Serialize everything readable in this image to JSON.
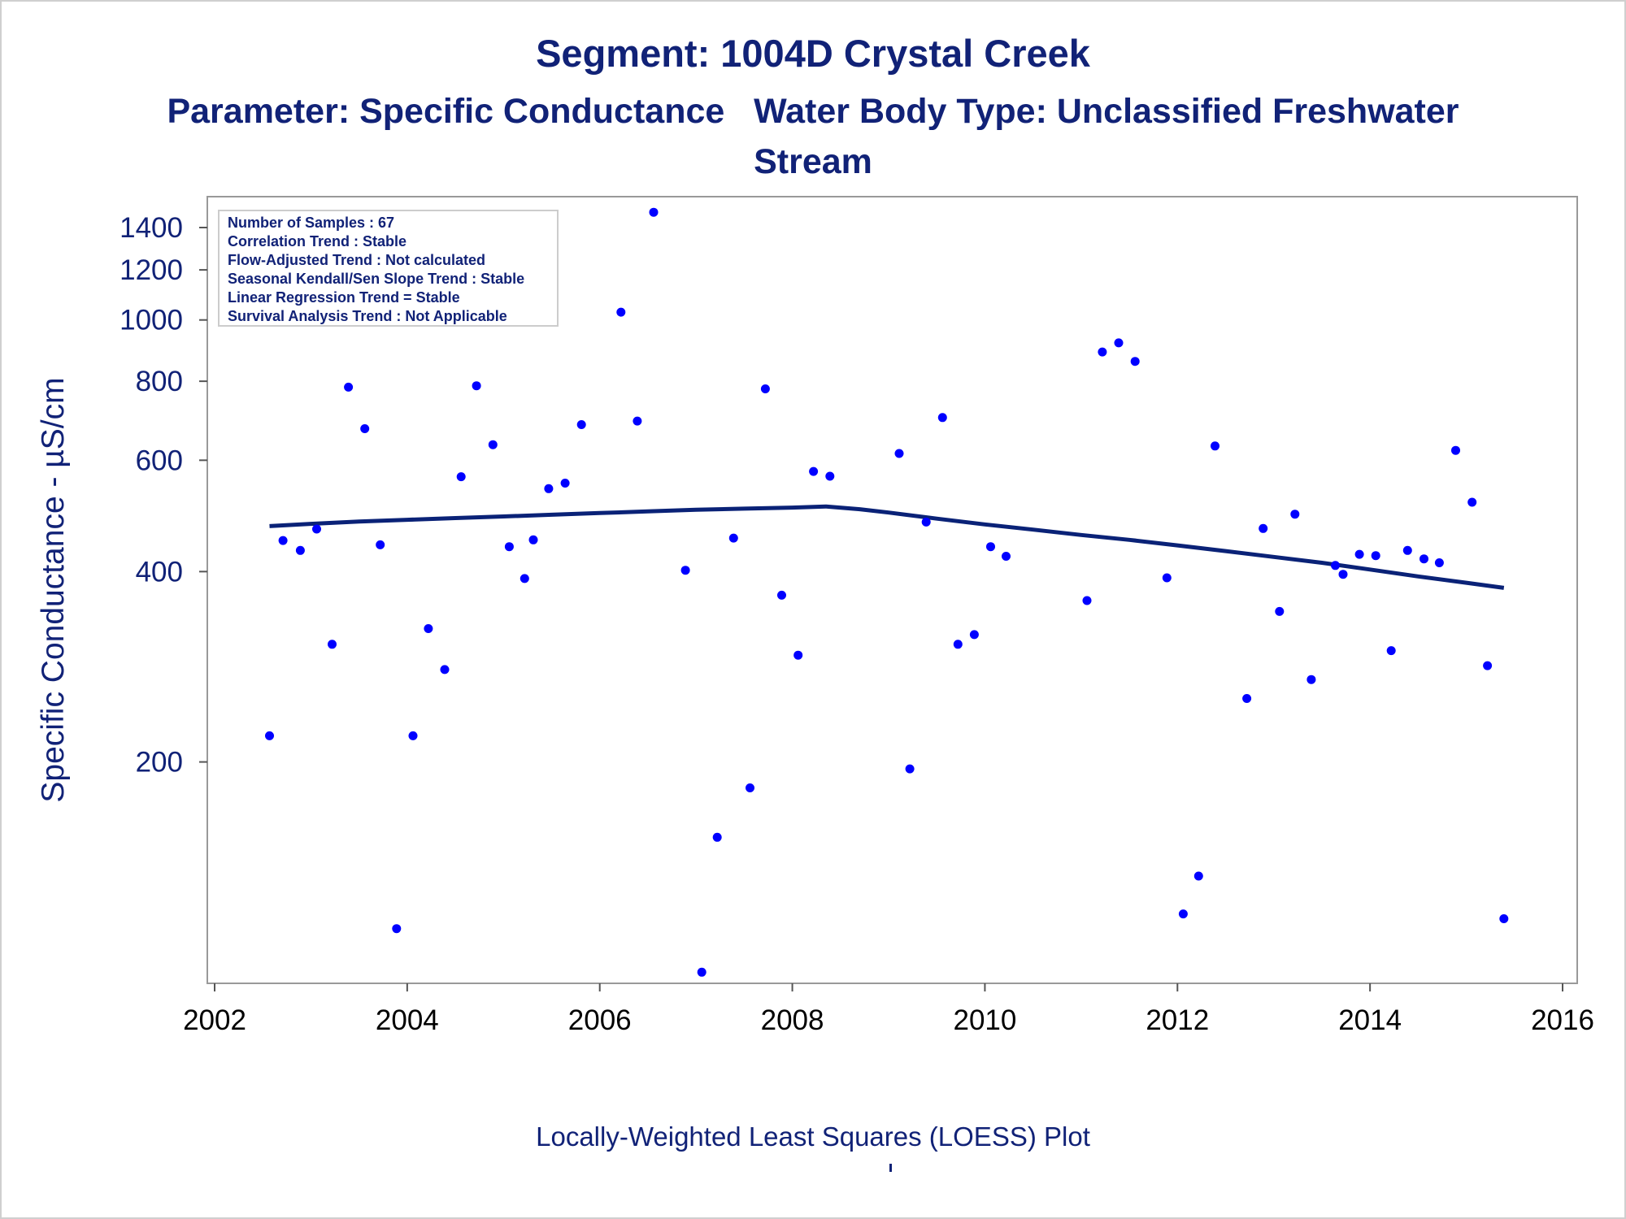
{
  "titles": {
    "title": "Segment: 1004D  Crystal Creek",
    "subtitle": "Parameter: Specific Conductance   Water Body Type: Unclassified Freshwater\nStream"
  },
  "footnote": "Locally-Weighted Least Squares (LOESS) Plot",
  "colors": {
    "text": "#112277",
    "points": "#0000ff",
    "loess": "#0a2277",
    "frame": "#999999"
  },
  "chart_data": {
    "type": "scatter",
    "xlabel": "",
    "ylabel": "Specific Conductance -  µS/cm",
    "y_scale": "log",
    "xlim": [
      2002,
      2016
    ],
    "ylim": [
      92,
      1530
    ],
    "xticks": [
      2002,
      2004,
      2006,
      2008,
      2010,
      2012,
      2014,
      2016
    ],
    "yticks": [
      200,
      400,
      600,
      800,
      1000,
      1200,
      1400
    ],
    "grid": false,
    "stats_box": {
      "position": "top-left",
      "lines": [
        "Number of Samples : 67",
        "Correlation Trend : Stable",
        "Flow-Adjusted Trend : Not calculated",
        "Seasonal Kendall/Sen Slope Trend : Stable",
        "Linear Regression Trend = Stable",
        "Survival Analysis Trend : Not Applicable"
      ]
    },
    "series": [
      {
        "kind": "points",
        "points": [
          {
            "x": 2002.57,
            "y": 220
          },
          {
            "x": 2002.71,
            "y": 448
          },
          {
            "x": 2002.89,
            "y": 432
          },
          {
            "x": 2003.06,
            "y": 467
          },
          {
            "x": 2003.22,
            "y": 307
          },
          {
            "x": 2003.39,
            "y": 783
          },
          {
            "x": 2003.56,
            "y": 673
          },
          {
            "x": 2003.72,
            "y": 441
          },
          {
            "x": 2003.89,
            "y": 109
          },
          {
            "x": 2004.06,
            "y": 220
          },
          {
            "x": 2004.22,
            "y": 325
          },
          {
            "x": 2004.39,
            "y": 280
          },
          {
            "x": 2004.56,
            "y": 565
          },
          {
            "x": 2004.72,
            "y": 787
          },
          {
            "x": 2004.89,
            "y": 635
          },
          {
            "x": 2005.06,
            "y": 438
          },
          {
            "x": 2005.22,
            "y": 390
          },
          {
            "x": 2005.31,
            "y": 449
          },
          {
            "x": 2005.47,
            "y": 541
          },
          {
            "x": 2005.64,
            "y": 552
          },
          {
            "x": 2005.81,
            "y": 683
          },
          {
            "x": 2006.22,
            "y": 1029
          },
          {
            "x": 2006.39,
            "y": 692
          },
          {
            "x": 2006.56,
            "y": 1480
          },
          {
            "x": 2006.89,
            "y": 402
          },
          {
            "x": 2007.06,
            "y": 93
          },
          {
            "x": 2007.22,
            "y": 152
          },
          {
            "x": 2007.39,
            "y": 452
          },
          {
            "x": 2007.56,
            "y": 182
          },
          {
            "x": 2007.72,
            "y": 778
          },
          {
            "x": 2007.89,
            "y": 367
          },
          {
            "x": 2008.06,
            "y": 295
          },
          {
            "x": 2008.22,
            "y": 576
          },
          {
            "x": 2008.39,
            "y": 566
          },
          {
            "x": 2009.11,
            "y": 615
          },
          {
            "x": 2009.22,
            "y": 195
          },
          {
            "x": 2009.39,
            "y": 479
          },
          {
            "x": 2009.56,
            "y": 701
          },
          {
            "x": 2009.72,
            "y": 307
          },
          {
            "x": 2009.89,
            "y": 318
          },
          {
            "x": 2010.06,
            "y": 438
          },
          {
            "x": 2010.22,
            "y": 423
          },
          {
            "x": 2011.06,
            "y": 360
          },
          {
            "x": 2011.22,
            "y": 890
          },
          {
            "x": 2011.39,
            "y": 920
          },
          {
            "x": 2011.56,
            "y": 860
          },
          {
            "x": 2011.89,
            "y": 391
          },
          {
            "x": 2012.06,
            "y": 115
          },
          {
            "x": 2012.22,
            "y": 132
          },
          {
            "x": 2012.39,
            "y": 632
          },
          {
            "x": 2012.72,
            "y": 252
          },
          {
            "x": 2012.89,
            "y": 468
          },
          {
            "x": 2013.06,
            "y": 346
          },
          {
            "x": 2013.22,
            "y": 493
          },
          {
            "x": 2013.39,
            "y": 270
          },
          {
            "x": 2013.64,
            "y": 409
          },
          {
            "x": 2013.72,
            "y": 396
          },
          {
            "x": 2013.89,
            "y": 426
          },
          {
            "x": 2014.06,
            "y": 424
          },
          {
            "x": 2014.22,
            "y": 300
          },
          {
            "x": 2014.39,
            "y": 432
          },
          {
            "x": 2014.56,
            "y": 419
          },
          {
            "x": 2014.72,
            "y": 413
          },
          {
            "x": 2014.89,
            "y": 622
          },
          {
            "x": 2015.06,
            "y": 515
          },
          {
            "x": 2015.22,
            "y": 284
          },
          {
            "x": 2015.39,
            "y": 113
          }
        ]
      },
      {
        "kind": "loess-line",
        "points": [
          {
            "x": 2002.57,
            "y": 472
          },
          {
            "x": 2003.0,
            "y": 476
          },
          {
            "x": 2003.5,
            "y": 480
          },
          {
            "x": 2004.0,
            "y": 483
          },
          {
            "x": 2004.5,
            "y": 486
          },
          {
            "x": 2005.0,
            "y": 489
          },
          {
            "x": 2005.5,
            "y": 492
          },
          {
            "x": 2006.0,
            "y": 495
          },
          {
            "x": 2006.5,
            "y": 498
          },
          {
            "x": 2007.0,
            "y": 501
          },
          {
            "x": 2007.5,
            "y": 503
          },
          {
            "x": 2008.0,
            "y": 505
          },
          {
            "x": 2008.35,
            "y": 507
          },
          {
            "x": 2008.7,
            "y": 502
          },
          {
            "x": 2009.0,
            "y": 496
          },
          {
            "x": 2009.5,
            "y": 485
          },
          {
            "x": 2010.0,
            "y": 475
          },
          {
            "x": 2010.5,
            "y": 466
          },
          {
            "x": 2011.0,
            "y": 457
          },
          {
            "x": 2011.5,
            "y": 449
          },
          {
            "x": 2012.0,
            "y": 440
          },
          {
            "x": 2012.5,
            "y": 431
          },
          {
            "x": 2013.0,
            "y": 422
          },
          {
            "x": 2013.5,
            "y": 413
          },
          {
            "x": 2014.0,
            "y": 403
          },
          {
            "x": 2014.5,
            "y": 393
          },
          {
            "x": 2015.0,
            "y": 384
          },
          {
            "x": 2015.39,
            "y": 377
          }
        ]
      }
    ]
  }
}
